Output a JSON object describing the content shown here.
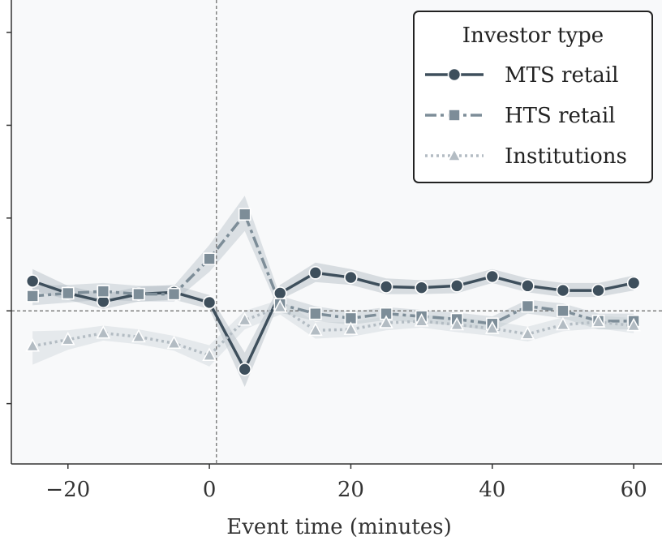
{
  "chart_data": {
    "type": "line",
    "xlabel": "Event time (minutes)",
    "ylabel": "",
    "xlim": [
      -28,
      64
    ],
    "ylim": [
      -1.65,
      3.35
    ],
    "x_ticks": [
      -20,
      0,
      20,
      40,
      60
    ],
    "x_tick_labels": [
      "−20",
      "0",
      "20",
      "40",
      "60"
    ],
    "y_ticks": [
      -1,
      0,
      1,
      2,
      3
    ],
    "reference_lines": {
      "x": 1,
      "y": 0
    },
    "grid": false,
    "legend": {
      "title": "Investor type",
      "position": "top-right"
    },
    "x": [
      -25,
      -20,
      -15,
      -10,
      -5,
      0,
      5,
      10,
      15,
      20,
      25,
      30,
      35,
      40,
      45,
      50,
      55,
      60
    ],
    "series": [
      {
        "name": "MTS retail",
        "marker": "circle",
        "line_style": "solid",
        "color": "#3e4f5c",
        "values": [
          0.32,
          0.19,
          0.1,
          0.18,
          0.2,
          0.09,
          -0.63,
          0.19,
          0.41,
          0.36,
          0.26,
          0.25,
          0.27,
          0.37,
          0.27,
          0.22,
          0.22,
          0.3
        ],
        "ci_lower": [
          0.22,
          0.12,
          0.02,
          0.1,
          0.12,
          0.02,
          -0.82,
          0.12,
          0.31,
          0.28,
          0.18,
          0.18,
          0.19,
          0.3,
          0.2,
          0.15,
          0.15,
          0.22
        ],
        "ci_upper": [
          0.45,
          0.27,
          0.18,
          0.26,
          0.28,
          0.17,
          -0.45,
          0.28,
          0.52,
          0.45,
          0.35,
          0.33,
          0.35,
          0.45,
          0.35,
          0.3,
          0.3,
          0.38
        ]
      },
      {
        "name": "HTS retail",
        "marker": "square",
        "line_style": "dashdot",
        "color": "#7d8d98",
        "values": [
          0.16,
          0.19,
          0.21,
          0.18,
          0.18,
          0.56,
          1.04,
          0.07,
          -0.03,
          -0.08,
          -0.03,
          -0.06,
          -0.09,
          -0.14,
          0.05,
          0.0,
          -0.11,
          -0.11
        ],
        "ci_lower": [
          0.06,
          0.09,
          0.12,
          0.1,
          0.1,
          0.42,
          0.86,
          -0.02,
          -0.11,
          -0.15,
          -0.1,
          -0.13,
          -0.16,
          -0.22,
          -0.03,
          -0.08,
          -0.2,
          -0.2
        ],
        "ci_upper": [
          0.27,
          0.28,
          0.3,
          0.27,
          0.27,
          0.71,
          1.24,
          0.16,
          0.05,
          -0.01,
          0.04,
          0.01,
          -0.02,
          -0.06,
          0.12,
          0.08,
          -0.03,
          -0.03
        ]
      },
      {
        "name": "Institutions",
        "marker": "triangle",
        "line_style": "dotted",
        "color": "#b3bcc3",
        "values": [
          -0.38,
          -0.31,
          -0.24,
          -0.28,
          -0.35,
          -0.48,
          -0.1,
          0.04,
          -0.21,
          -0.2,
          -0.13,
          -0.11,
          -0.15,
          -0.19,
          -0.25,
          -0.15,
          -0.12,
          -0.16
        ],
        "ci_lower": [
          -0.58,
          -0.42,
          -0.32,
          -0.36,
          -0.43,
          -0.6,
          -0.2,
          -0.04,
          -0.3,
          -0.28,
          -0.21,
          -0.18,
          -0.23,
          -0.27,
          -0.33,
          -0.22,
          -0.19,
          -0.24
        ],
        "ci_upper": [
          -0.22,
          -0.21,
          -0.16,
          -0.2,
          -0.27,
          -0.37,
          0.0,
          0.12,
          -0.12,
          -0.12,
          -0.06,
          -0.04,
          -0.07,
          -0.11,
          -0.17,
          -0.07,
          -0.05,
          -0.08
        ]
      }
    ]
  }
}
